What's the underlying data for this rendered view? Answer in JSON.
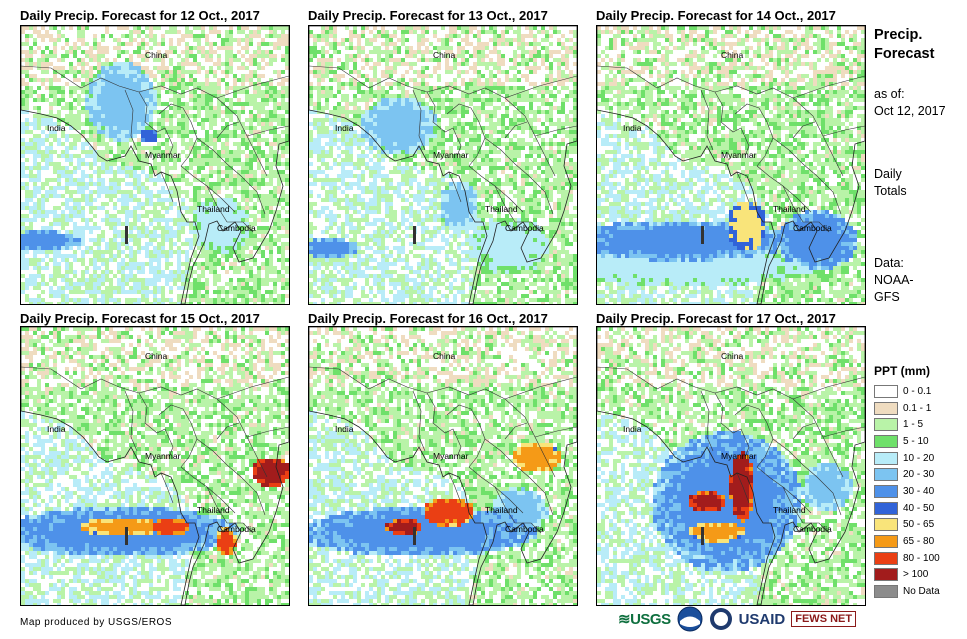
{
  "panels": [
    {
      "title": "Daily Precip. Forecast for 12 Oct., 2017"
    },
    {
      "title": "Daily Precip. Forecast for 13 Oct., 2017"
    },
    {
      "title": "Daily Precip. Forecast for 14 Oct., 2017"
    },
    {
      "title": "Daily Precip. Forecast for 15 Oct., 2017"
    },
    {
      "title": "Daily Precip. Forecast for 16 Oct., 2017"
    },
    {
      "title": "Daily Precip. Forecast for 17 Oct., 2017"
    }
  ],
  "map_labels": {
    "china": "China",
    "india": "India",
    "myanmar": "Myanmar",
    "thailand": "Thailand",
    "cambodia": "Cambodia"
  },
  "side": {
    "title_line1": "Precip.",
    "title_line2": "Forecast",
    "asof_line1": "as of:",
    "asof_line2": "Oct 12, 2017",
    "daily_line1": "Daily",
    "daily_line2": "Totals",
    "data_line1": "Data:",
    "data_line2": "NOAA-",
    "data_line3": "GFS"
  },
  "legend": {
    "title": "PPT (mm)",
    "items": [
      {
        "label": "0 - 0.1",
        "color": "#ffffff"
      },
      {
        "label": "0.1 - 1",
        "color": "#efdcc0"
      },
      {
        "label": "1 - 5",
        "color": "#b9f3a8"
      },
      {
        "label": "5 - 10",
        "color": "#6fe06a"
      },
      {
        "label": "10 - 20",
        "color": "#b8ecf8"
      },
      {
        "label": "20 - 30",
        "color": "#7cc4f1"
      },
      {
        "label": "30 - 40",
        "color": "#4e91e9"
      },
      {
        "label": "40 - 50",
        "color": "#3163d8"
      },
      {
        "label": "50 - 65",
        "color": "#f9e47a"
      },
      {
        "label": "65 - 80",
        "color": "#f59a17"
      },
      {
        "label": "80 - 100",
        "color": "#ea3f14"
      },
      {
        "label": "> 100",
        "color": "#a21c1c"
      },
      {
        "label": "No Data",
        "color": "#8c8c8c"
      }
    ]
  },
  "footer": {
    "credit": "Map produced by USGS/EROS"
  },
  "logos": {
    "usgs": "≋USGS",
    "usaid": "USAID",
    "fews": "FEWS NET"
  }
}
